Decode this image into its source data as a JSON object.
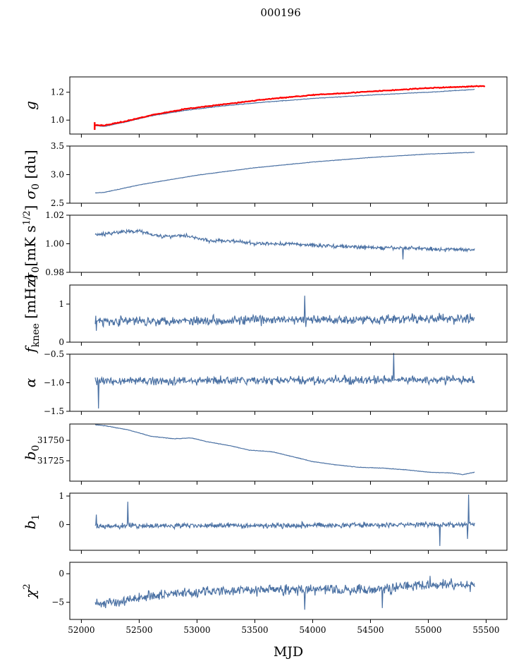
{
  "figure": {
    "title": "000196",
    "xlabel": "MJD",
    "series_color": "#4c72a4",
    "fit_color": "#ff0000"
  },
  "chart_data": [
    {
      "type": "line",
      "ylabel": "g",
      "ylabel_sub": "",
      "ylim": [
        0.9,
        1.31
      ],
      "yticks": [
        1.0,
        1.2
      ],
      "ytick_labels": [
        "1.0",
        "1.2"
      ],
      "xlim": [
        51900,
        55680
      ],
      "x_range": [
        52120,
        55400
      ],
      "trend": [
        [
          52120,
          0.96
        ],
        [
          52200,
          0.955
        ],
        [
          52400,
          0.99
        ],
        [
          52600,
          1.03
        ],
        [
          52900,
          1.07
        ],
        [
          53200,
          1.1
        ],
        [
          53600,
          1.13
        ],
        [
          54000,
          1.155
        ],
        [
          54500,
          1.18
        ],
        [
          55000,
          1.2
        ],
        [
          55400,
          1.22
        ]
      ],
      "noise": 0.002,
      "spikes": [],
      "overlay": {
        "name": "fit",
        "x_range": [
          52110,
          55490
        ],
        "trend": [
          [
            52110,
            0.965
          ],
          [
            52200,
            0.962
          ],
          [
            52400,
            0.995
          ],
          [
            52600,
            1.035
          ],
          [
            52900,
            1.08
          ],
          [
            53200,
            1.11
          ],
          [
            53600,
            1.15
          ],
          [
            54000,
            1.18
          ],
          [
            54500,
            1.205
          ],
          [
            55000,
            1.23
          ],
          [
            55490,
            1.245
          ]
        ]
      }
    },
    {
      "type": "line",
      "ylabel": "σ",
      "ylabel_sub": "0",
      "ylabel_suffix": " [du]",
      "ylim": [
        2.5,
        3.5
      ],
      "yticks": [
        2.5,
        3.0,
        3.5
      ],
      "ytick_labels": [
        "2.5",
        "3.0",
        "3.5"
      ],
      "xlim": [
        51900,
        55680
      ],
      "x_range": [
        52120,
        55400
      ],
      "trend": [
        [
          52120,
          2.68
        ],
        [
          52200,
          2.69
        ],
        [
          52500,
          2.82
        ],
        [
          53000,
          2.99
        ],
        [
          53500,
          3.12
        ],
        [
          54000,
          3.22
        ],
        [
          54500,
          3.3
        ],
        [
          55000,
          3.36
        ],
        [
          55400,
          3.39
        ]
      ],
      "noise": 0.004,
      "spikes": []
    },
    {
      "type": "line",
      "ylabel": "σ",
      "ylabel_sub": "0",
      "ylabel_suffix": "[mK s",
      "ylabel_sup": "1/2",
      "ylabel_end": "]",
      "ylim": [
        0.98,
        1.02
      ],
      "yticks": [
        0.98,
        1.0,
        1.02
      ],
      "ytick_labels": [
        "0.98",
        "1.00",
        "1.02"
      ],
      "xlim": [
        51900,
        55680
      ],
      "x_range": [
        52120,
        55400
      ],
      "trend": [
        [
          52120,
          1.006
        ],
        [
          52300,
          1.008
        ],
        [
          52500,
          1.009
        ],
        [
          52700,
          1.005
        ],
        [
          52900,
          1.006
        ],
        [
          53100,
          1.002
        ],
        [
          53300,
          1.002
        ],
        [
          53500,
          1.0
        ],
        [
          53800,
          1.0
        ],
        [
          54000,
          0.999
        ],
        [
          54300,
          0.998
        ],
        [
          54600,
          0.997
        ],
        [
          54900,
          0.997
        ],
        [
          55100,
          0.996
        ],
        [
          55400,
          0.996
        ]
      ],
      "noise": 0.0013,
      "spikes": [
        [
          54780,
          0.989
        ]
      ]
    },
    {
      "type": "line",
      "ylabel": "f",
      "ylabel_sub": "knee",
      "ylabel_suffix": " [mHz]",
      "ylim": [
        0,
        1.5
      ],
      "yticks": [
        0,
        1
      ],
      "ytick_labels": [
        "0",
        "1"
      ],
      "xlim": [
        51900,
        55680
      ],
      "x_range": [
        52120,
        55400
      ],
      "trend": [
        [
          52120,
          0.55
        ],
        [
          55400,
          0.62
        ]
      ],
      "noise": 0.12,
      "spikes": [
        [
          52130,
          0.3
        ],
        [
          53930,
          1.22
        ],
        [
          53940,
          0.4
        ]
      ]
    },
    {
      "type": "line",
      "ylabel": "α",
      "ylabel_sub": "",
      "ylim": [
        -1.5,
        -0.5
      ],
      "yticks": [
        -1.5,
        -1.0,
        -0.5
      ],
      "ytick_labels": [
        "−1.5",
        "−1.0",
        "−0.5"
      ],
      "xlim": [
        51900,
        55680
      ],
      "x_range": [
        52120,
        55400
      ],
      "trend": [
        [
          52120,
          -0.97
        ],
        [
          55400,
          -0.95
        ]
      ],
      "noise": 0.07,
      "spikes": [
        [
          52150,
          -1.45
        ],
        [
          54700,
          -0.48
        ]
      ]
    },
    {
      "type": "line",
      "ylabel": "b",
      "ylabel_sub": "0",
      "ylim": [
        31700,
        31770
      ],
      "yticks": [
        31725,
        31750
      ],
      "ytick_labels": [
        "31725",
        "31750"
      ],
      "xlim": [
        51900,
        55680
      ],
      "x_range": [
        52120,
        55400
      ],
      "trend": [
        [
          52120,
          31769
        ],
        [
          52200,
          31768
        ],
        [
          52400,
          31763
        ],
        [
          52600,
          31755
        ],
        [
          52800,
          31752
        ],
        [
          52950,
          31753
        ],
        [
          53100,
          31748
        ],
        [
          53300,
          31743
        ],
        [
          53450,
          31738
        ],
        [
          53650,
          31736
        ],
        [
          53800,
          31731
        ],
        [
          54000,
          31724
        ],
        [
          54200,
          31720
        ],
        [
          54400,
          31717
        ],
        [
          54600,
          31716
        ],
        [
          54800,
          31714
        ],
        [
          55000,
          31711
        ],
        [
          55200,
          31710
        ],
        [
          55300,
          31708
        ],
        [
          55400,
          31711
        ]
      ],
      "noise": 0.3,
      "spikes": []
    },
    {
      "type": "line",
      "ylabel": "b",
      "ylabel_sub": "1",
      "ylim": [
        -0.9,
        1.1
      ],
      "yticks": [
        0,
        1
      ],
      "ytick_labels": [
        "0",
        "1"
      ],
      "xlim": [
        51900,
        55680
      ],
      "x_range": [
        52120,
        55400
      ],
      "trend": [
        [
          52120,
          -0.05
        ],
        [
          55400,
          0.0
        ]
      ],
      "noise": 0.09,
      "spikes": [
        [
          52130,
          0.35
        ],
        [
          52400,
          0.8
        ],
        [
          55100,
          -0.75
        ],
        [
          55350,
          1.05
        ],
        [
          55340,
          -0.5
        ]
      ]
    },
    {
      "type": "line",
      "ylabel": "χ",
      "ylabel_sub": "",
      "ylabel_sup": "2",
      "ylim": [
        -8,
        2
      ],
      "yticks": [
        -5,
        0
      ],
      "ytick_labels": [
        "−5",
        "0"
      ],
      "xlim": [
        51900,
        55680
      ],
      "x_range": [
        52120,
        55400
      ],
      "trend": [
        [
          52120,
          -5.0
        ],
        [
          52300,
          -5.0
        ],
        [
          52600,
          -3.8
        ],
        [
          53000,
          -3.2
        ],
        [
          53500,
          -2.8
        ],
        [
          54000,
          -2.8
        ],
        [
          54500,
          -2.8
        ],
        [
          55000,
          -1.8
        ],
        [
          55400,
          -2.0
        ]
      ],
      "noise": 0.9,
      "spikes": [
        [
          53930,
          -6.3
        ],
        [
          54600,
          -6.0
        ]
      ],
      "xticks": [
        52000,
        52500,
        53000,
        53500,
        54000,
        54500,
        55000,
        55500
      ],
      "xtick_labels": [
        "52000",
        "52500",
        "53000",
        "53500",
        "54000",
        "54500",
        "55000",
        "55500"
      ]
    }
  ]
}
